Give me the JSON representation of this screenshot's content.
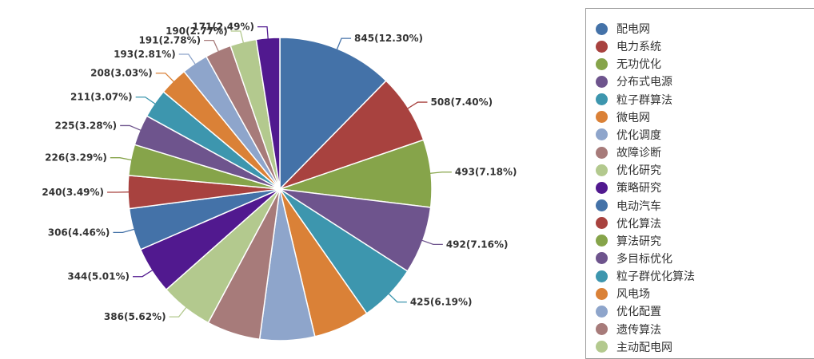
{
  "chart_data": {
    "type": "pie",
    "slices": [
      {
        "name": "配电网",
        "value": 845,
        "label": "845(12.30%)",
        "color": "#4472A8"
      },
      {
        "name": "电力系统",
        "value": 508,
        "label": "508(7.40%)",
        "color": "#A8423F"
      },
      {
        "name": "无功优化",
        "value": 493,
        "label": "493(7.18%)",
        "color": "#86A44A"
      },
      {
        "name": "分布式电源",
        "value": 492,
        "label": "492(7.16%)",
        "color": "#6E548D"
      },
      {
        "name": "粒子群算法",
        "value": 425,
        "label": "425(6.19%)",
        "color": "#3D96AE"
      },
      {
        "name": "微电网",
        "value": 410,
        "label": "",
        "color": "#DA8137"
      },
      {
        "name": "优化调度",
        "value": 400,
        "label": "",
        "color": "#8EA5CB"
      },
      {
        "name": "故障诊断",
        "value": 390,
        "label": "",
        "color": "#A77B7A"
      },
      {
        "name": "优化研究",
        "value": 386,
        "label": "386(5.62%)",
        "color": "#B3C98E"
      },
      {
        "name": "策略研究",
        "value": 344,
        "label": "344(5.01%)",
        "color": "#51198F"
      },
      {
        "name": "电动汽车",
        "value": 306,
        "label": "306(4.46%)",
        "color": "#4472A8"
      },
      {
        "name": "优化算法",
        "value": 240,
        "label": "240(3.49%)",
        "color": "#A8423F"
      },
      {
        "name": "算法研究",
        "value": 226,
        "label": "226(3.29%)",
        "color": "#86A44A"
      },
      {
        "name": "多目标优化",
        "value": 225,
        "label": "225(3.28%)",
        "color": "#6E548D"
      },
      {
        "name": "粒子群优化算法",
        "value": 211,
        "label": "211(3.07%)",
        "color": "#3D96AE"
      },
      {
        "name": "风电场",
        "value": 208,
        "label": "208(3.03%)",
        "color": "#DA8137"
      },
      {
        "name": "优化配置",
        "value": 193,
        "label": "193(2.81%)",
        "color": "#8EA5CB"
      },
      {
        "name": "遗传算法",
        "value": 191,
        "label": "191(2.78%)",
        "color": "#A77B7A"
      },
      {
        "name": "主动配电网",
        "value": 190,
        "label": "190(2.77%)",
        "color": "#B3C98E"
      },
      {
        "name": "",
        "value": 171,
        "label": "171(2.49%)",
        "color": "#51198F"
      }
    ],
    "legend": {
      "position": "right",
      "items": [
        {
          "name": "配电网",
          "color": "#4472A8"
        },
        {
          "name": "电力系统",
          "color": "#A8423F"
        },
        {
          "name": "无功优化",
          "color": "#86A44A"
        },
        {
          "name": "分布式电源",
          "color": "#6E548D"
        },
        {
          "name": "粒子群算法",
          "color": "#3D96AE"
        },
        {
          "name": "微电网",
          "color": "#DA8137"
        },
        {
          "name": "优化调度",
          "color": "#8EA5CB"
        },
        {
          "name": "故障诊断",
          "color": "#A77B7A"
        },
        {
          "name": "优化研究",
          "color": "#B3C98E"
        },
        {
          "name": "策略研究",
          "color": "#51198F"
        },
        {
          "name": "电动汽车",
          "color": "#4472A8"
        },
        {
          "name": "优化算法",
          "color": "#A8423F"
        },
        {
          "name": "算法研究",
          "color": "#86A44A"
        },
        {
          "name": "多目标优化",
          "color": "#6E548D"
        },
        {
          "name": "粒子群优化算法",
          "color": "#3D96AE"
        },
        {
          "name": "风电场",
          "color": "#DA8137"
        },
        {
          "name": "优化配置",
          "color": "#8EA5CB"
        },
        {
          "name": "遗传算法",
          "color": "#A77B7A"
        },
        {
          "name": "主动配电网",
          "color": "#B3C98E"
        }
      ]
    }
  }
}
